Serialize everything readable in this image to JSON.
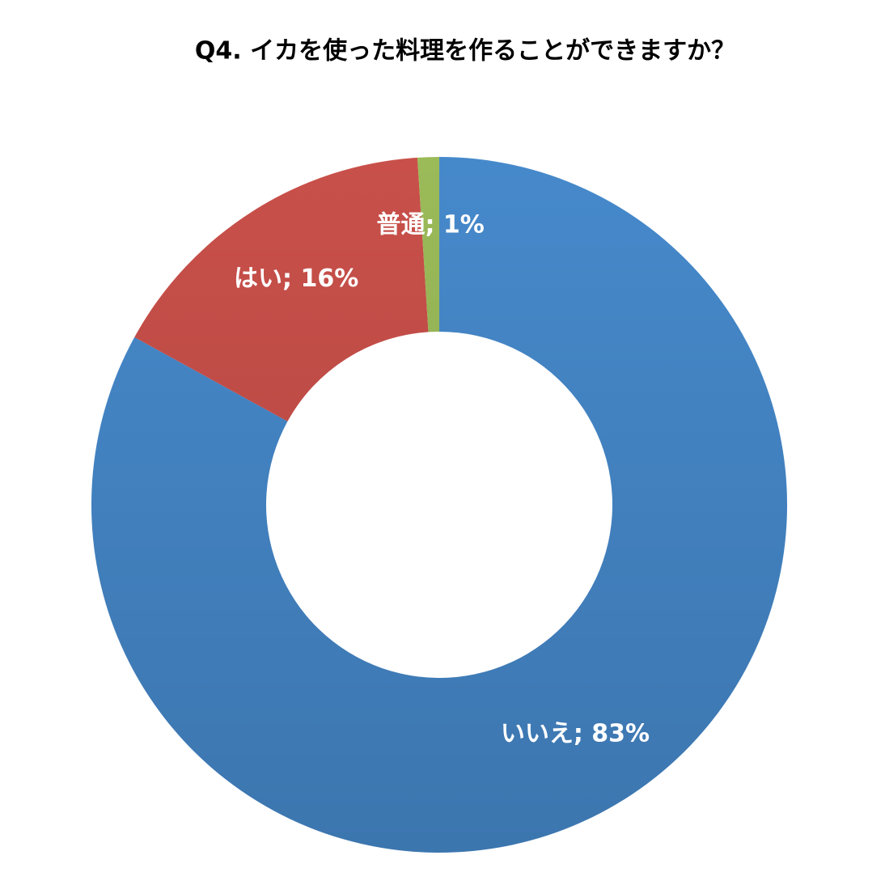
{
  "chart_data": {
    "type": "donut",
    "title": "Q4.   イカを使った料理を作ることができますか？",
    "categories": [
      "いいえ",
      "はい",
      "普通"
    ],
    "values": [
      83,
      16,
      1
    ],
    "value_labels": [
      "いいえ; 83%",
      "はい; 16%",
      "普通; 1%"
    ],
    "colors": [
      "#4689cb",
      "#c9504a",
      "#9bbb59"
    ]
  }
}
